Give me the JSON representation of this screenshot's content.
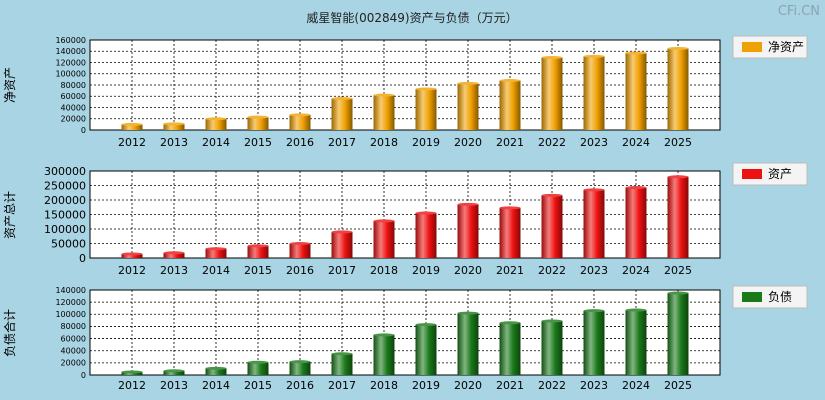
{
  "watermark": "CFi.CN",
  "chart_data": {
    "type": "bar",
    "title": "威星智能(002849)资产与负债（万元）",
    "categories": [
      "2012",
      "2013",
      "2014",
      "2015",
      "2016",
      "2017",
      "2018",
      "2019",
      "2020",
      "2021",
      "2022",
      "2023",
      "2024",
      "2025"
    ],
    "panels": [
      {
        "id": "equity",
        "ylabel": "净资产",
        "legend": "净资产",
        "color": "#f0a000",
        "ylim": [
          0,
          160000
        ],
        "yticks": [
          0,
          20000,
          40000,
          60000,
          80000,
          100000,
          120000,
          140000,
          160000
        ],
        "series": [
          {
            "name": "净资产",
            "values": [
              10000,
              11000,
              20000,
              23000,
              27000,
              56000,
              62000,
              73000,
              83000,
              88000,
              129000,
              131000,
              137000,
              145000
            ]
          }
        ]
      },
      {
        "id": "assets",
        "ylabel": "资产总计",
        "legend": "资产",
        "color": "#ee1111",
        "ylim": [
          0,
          300000
        ],
        "yticks": [
          0,
          50000,
          100000,
          150000,
          200000,
          250000,
          300000
        ],
        "series": [
          {
            "name": "资产",
            "values": [
              14000,
              18000,
              32000,
              42000,
              50000,
              90000,
              128000,
              155000,
              185000,
              173000,
              216000,
              235000,
              243000,
              280000
            ]
          }
        ]
      },
      {
        "id": "liabilities",
        "ylabel": "负债合计",
        "legend": "负债",
        "color": "#1a7a1a",
        "ylim": [
          0,
          140000
        ],
        "yticks": [
          0,
          20000,
          40000,
          60000,
          80000,
          100000,
          120000,
          140000
        ],
        "series": [
          {
            "name": "负债",
            "values": [
              5000,
              7000,
              11000,
              21000,
              22000,
              35000,
              66000,
              83000,
              102000,
              86000,
              89000,
              106000,
              107000,
              135000
            ]
          }
        ]
      }
    ]
  }
}
